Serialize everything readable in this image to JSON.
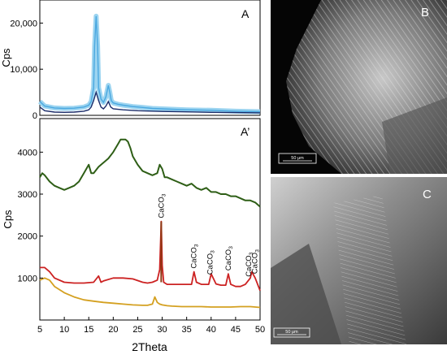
{
  "panels": {
    "A": "A",
    "A_prime": "A’",
    "B": "B",
    "C": "C"
  },
  "sem": {
    "B": {
      "scale_label": "50 μm"
    },
    "C": {
      "scale_label": "50 μm"
    }
  },
  "chart_data": [
    {
      "type": "line",
      "panel": "A",
      "xlabel": "",
      "ylabel": "Cps",
      "xlim": [
        5,
        50
      ],
      "ylim": [
        0,
        25000
      ],
      "yticks": [
        0,
        10000,
        20000
      ],
      "ytick_labels": [
        "0",
        "10,000",
        "20,000"
      ],
      "colors": {
        "band": "#9cd4f0",
        "main": "#4aa8e0",
        "mean": "#1a2c6a"
      },
      "series": [
        {
          "x": [
            5,
            6,
            8,
            10,
            12,
            14,
            15,
            15.5,
            16,
            16.2,
            16.5,
            16.8,
            17,
            17.5,
            18,
            18.5,
            19,
            19.3,
            19.6,
            20,
            21,
            22,
            24,
            26,
            28,
            30,
            35,
            40,
            45,
            50
          ],
          "y": [
            3000,
            2000,
            1600,
            1500,
            1550,
            1800,
            2200,
            3000,
            6000,
            15000,
            21500,
            15000,
            6000,
            3500,
            2800,
            4000,
            6500,
            5000,
            3200,
            2700,
            2400,
            2200,
            1900,
            1700,
            1500,
            1400,
            1200,
            1100,
            900,
            800
          ]
        },
        {
          "x": [
            5,
            6,
            8,
            10,
            12,
            14,
            15,
            15.5,
            16,
            16.5,
            17,
            17.5,
            18,
            18.5,
            19,
            19.5,
            20,
            22,
            25,
            30,
            35,
            40,
            45,
            50
          ],
          "y": [
            1800,
            1000,
            700,
            650,
            700,
            900,
            1200,
            1800,
            3200,
            5000,
            3200,
            1800,
            1400,
            2000,
            3000,
            1800,
            1400,
            1200,
            1000,
            850,
            750,
            650,
            600,
            550
          ]
        }
      ]
    },
    {
      "type": "line",
      "panel": "A’",
      "xlabel": "2Theta",
      "ylabel": "Cps",
      "xlim": [
        5,
        50
      ],
      "ylim": [
        0,
        4800
      ],
      "xticks": [
        5,
        10,
        15,
        20,
        25,
        30,
        35,
        40,
        45,
        50
      ],
      "yticks": [
        1000,
        2000,
        3000,
        4000
      ],
      "colors": {
        "green": "#2e5e16",
        "red": "#cc2222",
        "orange": "#d4a020",
        "calcite_peak": "#8c3a14"
      },
      "series": [
        {
          "x": [
            5,
            5.5,
            6,
            7,
            8,
            9,
            10,
            11,
            12,
            13,
            14,
            15,
            15.5,
            16,
            17,
            18,
            19,
            20,
            21,
            21.5,
            22,
            22.5,
            23,
            23.5,
            24,
            25,
            26,
            27,
            28,
            29,
            29.5,
            30,
            30.5,
            31,
            32,
            33,
            34,
            35,
            36,
            37,
            38,
            39,
            40,
            41,
            42,
            43,
            44,
            45,
            46,
            47,
            48,
            49,
            50
          ],
          "y": [
            3400,
            3500,
            3450,
            3300,
            3200,
            3150,
            3100,
            3150,
            3200,
            3300,
            3500,
            3700,
            3500,
            3500,
            3650,
            3750,
            3850,
            4000,
            4200,
            4300,
            4300,
            4300,
            4250,
            4100,
            3900,
            3700,
            3550,
            3500,
            3450,
            3500,
            3700,
            3600,
            3400,
            3400,
            3350,
            3300,
            3250,
            3200,
            3250,
            3150,
            3100,
            3150,
            3050,
            3050,
            3000,
            3000,
            2950,
            2950,
            2900,
            2850,
            2850,
            2800,
            2700
          ]
        },
        {
          "x": [
            5,
            6,
            7,
            8,
            10,
            12,
            14,
            16,
            17,
            17.5,
            18,
            20,
            22,
            24,
            26,
            27,
            28,
            29,
            29.5,
            29.8,
            30,
            30.3,
            31,
            32,
            34,
            36,
            36.5,
            37,
            38,
            39.5,
            40,
            41,
            42,
            43,
            43.5,
            44,
            45,
            46,
            47,
            48,
            48.3,
            49,
            49.5,
            50
          ],
          "y": [
            1250,
            1250,
            1150,
            1000,
            900,
            880,
            880,
            900,
            1050,
            900,
            930,
            1000,
            1000,
            980,
            900,
            880,
            900,
            950,
            1200,
            2350,
            1300,
            900,
            850,
            850,
            850,
            850,
            1150,
            900,
            850,
            850,
            1100,
            860,
            830,
            830,
            1100,
            850,
            800,
            800,
            850,
            1000,
            1150,
            1000,
            850,
            700
          ]
        },
        {
          "x": [
            5,
            6,
            7,
            8,
            10,
            12,
            14,
            16,
            18,
            20,
            22,
            24,
            26,
            27,
            28,
            28.5,
            29,
            29.5,
            30,
            31,
            32,
            34,
            36,
            38,
            40,
            42,
            44,
            46,
            48,
            50
          ],
          "y": [
            950,
            1000,
            950,
            800,
            650,
            550,
            480,
            450,
            420,
            400,
            380,
            360,
            350,
            350,
            380,
            550,
            420,
            380,
            360,
            340,
            330,
            320,
            320,
            320,
            310,
            310,
            310,
            320,
            320,
            300
          ]
        }
      ],
      "annotations": [
        {
          "text": "CaCO",
          "subscript": "3",
          "x": 29.8
        },
        {
          "text": "CaCO",
          "subscript": "3",
          "x": 36.5
        },
        {
          "text": "CaCO",
          "subscript": "3",
          "x": 39.8
        },
        {
          "text": "CaCO",
          "subscript": "3",
          "x": 43.5
        },
        {
          "text": "CaCO",
          "subscript": "3",
          "x": 47.7
        },
        {
          "text": "CaCO",
          "subscript": "3",
          "x": 48.9
        }
      ]
    }
  ]
}
